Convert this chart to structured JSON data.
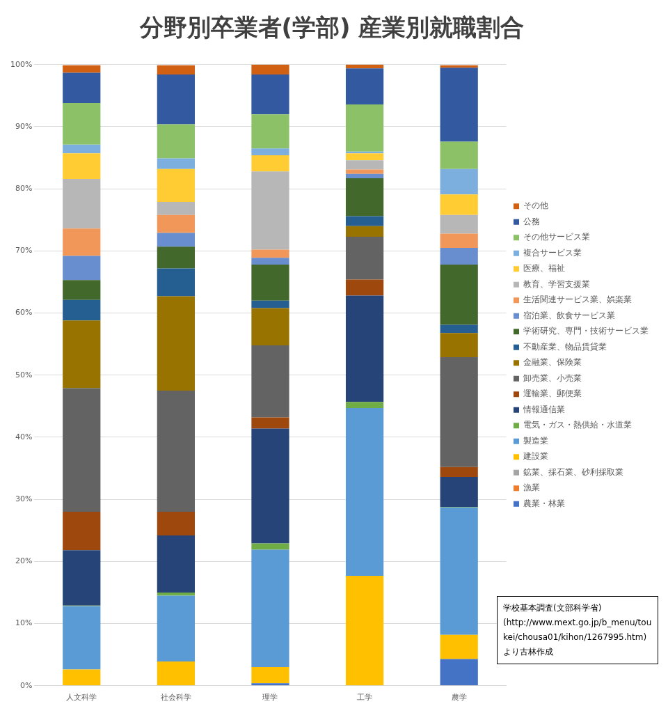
{
  "chart_data": {
    "type": "bar",
    "title": "分野別卒業者(学部) 産業別就職割合",
    "stacked": true,
    "categories": [
      "人文科学",
      "社会科学",
      "理学",
      "工学",
      "農学"
    ],
    "series": [
      {
        "name": "農業・林業",
        "color": "#4472c4",
        "values": [
          null,
          null,
          0.4,
          0,
          4.3
        ]
      },
      {
        "name": "漁業",
        "color": "#ed7d31",
        "values": [
          0,
          0,
          0,
          0,
          null
        ]
      },
      {
        "name": "鉱業、採石業、砂利採取業",
        "color": "#a5a5a5",
        "values": [
          0,
          0,
          0,
          0,
          0
        ]
      },
      {
        "name": "建設業",
        "color": "#ffc000",
        "values": [
          2.6,
          3.9,
          2.6,
          17.7,
          3.9
        ]
      },
      {
        "name": "製造業",
        "color": "#5b9bd5",
        "values": [
          10.2,
          10.6,
          18.9,
          27.0,
          20.5
        ]
      },
      {
        "name": "電気・ガス・熱供給・水道業",
        "color": "#70ad47",
        "values": [
          0.1,
          0.5,
          1.0,
          1.0,
          0.1
        ]
      },
      {
        "name": "情報通信業",
        "color": "#264478",
        "values": [
          8.9,
          9.2,
          18.5,
          17.1,
          4.8
        ]
      },
      {
        "name": "運輸業、郵便業",
        "color": "#9e480e",
        "values": [
          6.2,
          3.8,
          1.8,
          2.6,
          1.6
        ]
      },
      {
        "name": "卸売業、小売業",
        "color": "#636363",
        "values": [
          19.9,
          19.5,
          11.6,
          6.9,
          17.7
        ]
      },
      {
        "name": "金融業、保険業",
        "color": "#997300",
        "values": [
          10.9,
          15.2,
          6.0,
          1.7,
          3.9
        ]
      },
      {
        "name": "不動産業、物品賃貸業",
        "color": "#255e91",
        "values": [
          3.3,
          4.5,
          1.2,
          1.6,
          1.3
        ]
      },
      {
        "name": "学術研究、専門・技術サービス業",
        "color": "#43682b",
        "values": [
          3.2,
          3.5,
          5.8,
          6.1,
          9.7
        ]
      },
      {
        "name": "宿泊業、飲食サービス業",
        "color": "#698ed0",
        "values": [
          3.9,
          2.2,
          1.1,
          0.7,
          2.7
        ]
      },
      {
        "name": "生活関連サービス業、娯楽業",
        "color": "#f1975a",
        "values": [
          4.4,
          2.9,
          1.3,
          0.7,
          2.3
        ]
      },
      {
        "name": "教育、学習支援業",
        "color": "#b7b7b7",
        "values": [
          8.0,
          2.1,
          12.6,
          1.5,
          3.0
        ]
      },
      {
        "name": "医療、福祉",
        "color": "#ffcd33",
        "values": [
          4.1,
          5.3,
          2.6,
          1.1,
          3.3
        ]
      },
      {
        "name": "複合サービス業",
        "color": "#7cafdd",
        "values": [
          1.4,
          1.7,
          1.1,
          0.3,
          4.1
        ]
      },
      {
        "name": "その他サービス業",
        "color": "#8cc168",
        "values": [
          6.7,
          5.5,
          5.5,
          7.6,
          4.4
        ]
      },
      {
        "name": "公務",
        "color": "#335aa1",
        "values": [
          4.9,
          8.0,
          6.4,
          5.8,
          11.9
        ]
      },
      {
        "name": "その他",
        "color": "#d26012",
        "values": [
          1.2,
          1.5,
          1.6,
          0.6,
          0.4
        ]
      }
    ],
    "ylim": [
      0,
      100
    ],
    "yticks": [
      {
        "value": 0,
        "label": "0%"
      },
      {
        "value": 10,
        "label": "10%"
      },
      {
        "value": 20,
        "label": "20%"
      },
      {
        "value": 30,
        "label": "30%"
      },
      {
        "value": 40,
        "label": "40%"
      },
      {
        "value": 50,
        "label": "50%"
      },
      {
        "value": 60,
        "label": "60%"
      },
      {
        "value": 70,
        "label": "70%"
      },
      {
        "value": 80,
        "label": "80%"
      },
      {
        "value": 90,
        "label": "90%"
      },
      {
        "value": 100,
        "label": "100%"
      }
    ],
    "grid": "y",
    "legend": "right",
    "annotations": [
      "学校基本調査(文部科学省)\n(http://www.mext.go.jp/b_menu/toukei/chousa01/kihon/1267995.htm)\nより古林作成"
    ]
  }
}
